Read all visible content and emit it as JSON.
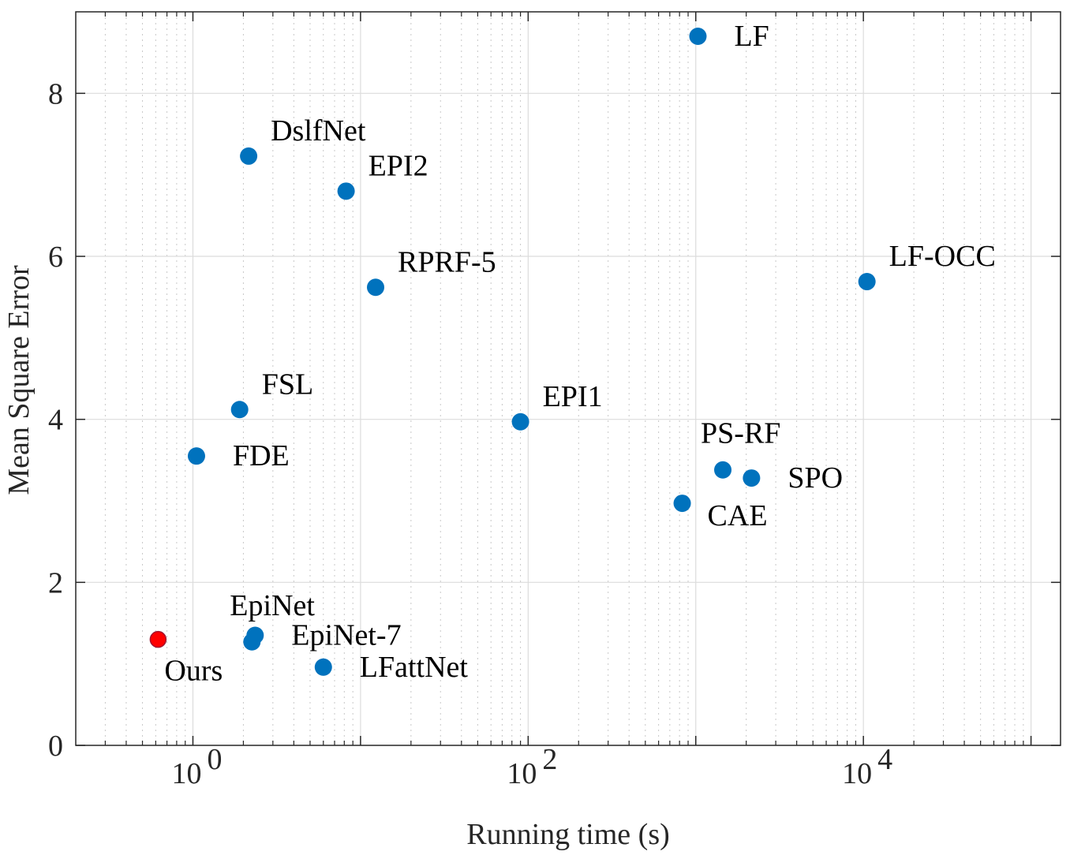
{
  "chart_data": {
    "type": "scatter",
    "title": "",
    "xlabel": "Running time (s)",
    "ylabel": "Mean Square Error",
    "xscale": "log",
    "xlim": [
      0.2,
      150000
    ],
    "ylim": [
      0,
      9
    ],
    "grid": true,
    "minor_grid": true,
    "x_ticks": [
      {
        "value": 1,
        "base": "10",
        "exp": "0"
      },
      {
        "value": 100,
        "base": "10",
        "exp": "2"
      },
      {
        "value": 10000,
        "base": "10",
        "exp": "4"
      }
    ],
    "y_ticks": [
      {
        "value": 0,
        "label": "0"
      },
      {
        "value": 2,
        "label": "2"
      },
      {
        "value": 4,
        "label": "4"
      },
      {
        "value": 6,
        "label": "6"
      },
      {
        "value": 8,
        "label": "8"
      }
    ],
    "colors": {
      "methods": "#0072BD",
      "ours": "#FF0000",
      "ours_edge": "#A2142F"
    },
    "points": [
      {
        "name": "LF",
        "x": 1030,
        "y": 8.7,
        "color": "methods",
        "label_pos": "right"
      },
      {
        "name": "DslfNet",
        "x": 2.15,
        "y": 7.23,
        "color": "methods",
        "label_pos": "upper-right"
      },
      {
        "name": "EPI2",
        "x": 8.2,
        "y": 6.8,
        "color": "methods",
        "label_pos": "upper-right"
      },
      {
        "name": "RPRF-5",
        "x": 12.3,
        "y": 5.62,
        "color": "methods",
        "label_pos": "upper-right"
      },
      {
        "name": "LF-OCC",
        "x": 10500,
        "y": 5.69,
        "color": "methods",
        "label_pos": "upper-right"
      },
      {
        "name": "FSL",
        "x": 1.9,
        "y": 4.12,
        "color": "methods",
        "label_pos": "upper-right"
      },
      {
        "name": "EPI1",
        "x": 90,
        "y": 3.97,
        "color": "methods",
        "label_pos": "upper-right"
      },
      {
        "name": "FDE",
        "x": 1.05,
        "y": 3.55,
        "color": "methods",
        "label_pos": "right"
      },
      {
        "name": "PS-RF",
        "x": 1450,
        "y": 3.38,
        "color": "methods",
        "label_pos": "above"
      },
      {
        "name": "SPO",
        "x": 2150,
        "y": 3.28,
        "color": "methods",
        "label_pos": "right"
      },
      {
        "name": "CAE",
        "x": 830,
        "y": 2.97,
        "color": "methods",
        "label_pos": "lower-right"
      },
      {
        "name": "EpiNet",
        "x": 2.25,
        "y": 1.27,
        "color": "methods",
        "label_pos": "above"
      },
      {
        "name": "EpiNet-7",
        "x": 2.35,
        "y": 1.35,
        "color": "methods",
        "label_pos": "right"
      },
      {
        "name": "LFattNet",
        "x": 6.0,
        "y": 0.96,
        "color": "methods",
        "label_pos": "right"
      },
      {
        "name": "Ours",
        "x": 0.62,
        "y": 1.3,
        "color": "ours",
        "label_pos": "below"
      }
    ]
  }
}
